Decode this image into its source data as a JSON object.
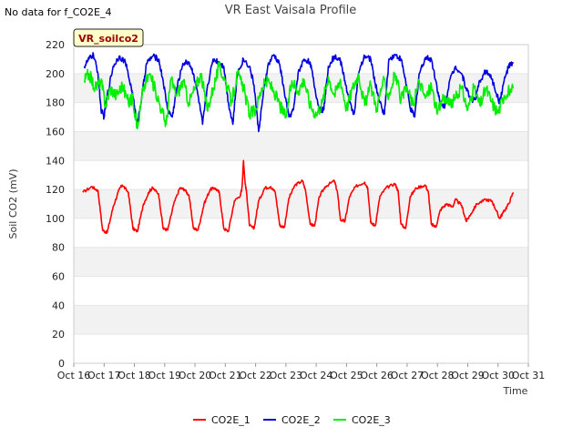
{
  "header": {
    "no_data_note": "No data for f_CO2E_4"
  },
  "chart_data": {
    "type": "line",
    "title": "VR East Vaisala Profile",
    "site_badge": "VR_soilco2",
    "xlabel": "Time",
    "ylabel": "Soil CO2 (mV)",
    "xlim": [
      0,
      15
    ],
    "ylim": [
      0,
      220
    ],
    "yticks": [
      0,
      20,
      40,
      60,
      80,
      100,
      120,
      140,
      160,
      180,
      200,
      220
    ],
    "xtick_labels": [
      "Oct 16",
      "Oct 17",
      "Oct 18",
      "Oct 19",
      "Oct 20",
      "Oct 21",
      "Oct 22",
      "Oct 23",
      "Oct 24",
      "Oct 25",
      "Oct 26",
      "Oct 27",
      "Oct 28",
      "Oct 29",
      "Oct 30",
      "Oct 31"
    ],
    "grid": "horizontal bands",
    "series": [
      {
        "name": "CO2E_1",
        "color": "#ff0000",
        "x": [
          0.3,
          0.6,
          0.8,
          0.95,
          1.1,
          1.3,
          1.5,
          1.6,
          1.8,
          1.95,
          2.1,
          2.3,
          2.5,
          2.6,
          2.8,
          2.95,
          3.1,
          3.3,
          3.5,
          3.65,
          3.8,
          3.95,
          4.1,
          4.3,
          4.5,
          4.65,
          4.8,
          4.95,
          5.1,
          5.3,
          5.5,
          5.55,
          5.6,
          5.65,
          5.7,
          5.8,
          5.95,
          6.1,
          6.3,
          6.5,
          6.65,
          6.8,
          6.95,
          7.1,
          7.3,
          7.55,
          7.65,
          7.8,
          7.95,
          8.1,
          8.3,
          8.6,
          8.7,
          8.8,
          8.95,
          9.1,
          9.3,
          9.6,
          9.7,
          9.8,
          9.95,
          10.1,
          10.3,
          10.6,
          10.7,
          10.8,
          10.95,
          11.1,
          11.3,
          11.6,
          11.7,
          11.8,
          11.95,
          12.1,
          12.3,
          12.5,
          12.6,
          12.8,
          12.95,
          13.1,
          13.3,
          13.6,
          13.8,
          13.95,
          14.05,
          14.2,
          14.35,
          14.5
        ],
        "values": [
          118,
          122,
          119,
          92,
          90,
          108,
          120,
          123,
          118,
          93,
          91,
          110,
          119,
          121,
          117,
          93,
          92,
          110,
          121,
          120,
          116,
          93,
          92,
          110,
          120,
          121,
          118,
          93,
          91,
          112,
          116,
          121,
          140,
          125,
          118,
          95,
          93,
          112,
          121,
          122,
          118,
          95,
          94,
          114,
          123,
          126,
          119,
          96,
          95,
          115,
          122,
          126,
          118,
          99,
          98,
          115,
          122,
          125,
          121,
          97,
          95,
          115,
          121,
          124,
          119,
          96,
          93,
          115,
          121,
          123,
          118,
          96,
          94,
          106,
          110,
          108,
          113,
          109,
          98,
          103,
          110,
          113,
          112,
          105,
          100,
          105,
          110,
          118
        ]
      },
      {
        "name": "CO2E_2",
        "color": "#0000dd",
        "x": [
          0.35,
          0.5,
          0.65,
          0.8,
          0.9,
          1.0,
          1.1,
          1.3,
          1.5,
          1.7,
          1.9,
          2.0,
          2.1,
          2.25,
          2.4,
          2.6,
          2.8,
          2.95,
          3.1,
          3.25,
          3.4,
          3.6,
          3.8,
          3.95,
          4.1,
          4.25,
          4.4,
          4.6,
          4.8,
          4.95,
          5.1,
          5.25,
          5.4,
          5.6,
          5.8,
          5.95,
          6.1,
          6.25,
          6.4,
          6.6,
          6.8,
          6.95,
          7.1,
          7.25,
          7.4,
          7.6,
          7.8,
          7.95,
          8.1,
          8.25,
          8.4,
          8.6,
          8.8,
          8.95,
          9.1,
          9.25,
          9.4,
          9.6,
          9.8,
          9.95,
          10.1,
          10.25,
          10.4,
          10.6,
          10.8,
          10.95,
          11.1,
          11.25,
          11.4,
          11.6,
          11.8,
          11.95,
          12.1,
          12.25,
          12.4,
          12.6,
          12.8,
          12.95,
          13.1,
          13.25,
          13.4,
          13.6,
          13.8,
          13.95,
          14.05,
          14.2,
          14.35,
          14.5
        ],
        "values": [
          205,
          210,
          213,
          200,
          175,
          170,
          185,
          205,
          212,
          208,
          190,
          178,
          165,
          185,
          207,
          212,
          210,
          195,
          175,
          170,
          190,
          207,
          208,
          200,
          185,
          165,
          190,
          210,
          208,
          205,
          180,
          165,
          200,
          210,
          205,
          192,
          160,
          185,
          205,
          213,
          206,
          187,
          170,
          175,
          200,
          210,
          208,
          190,
          175,
          175,
          205,
          212,
          209,
          195,
          180,
          172,
          200,
          212,
          210,
          193,
          180,
          172,
          210,
          213,
          210,
          195,
          176,
          170,
          200,
          211,
          210,
          195,
          178,
          178,
          195,
          205,
          200,
          190,
          182,
          182,
          195,
          202,
          196,
          186,
          180,
          195,
          205,
          207
        ]
      },
      {
        "name": "CO2E_3",
        "color": "#00ee00",
        "x": [
          0.35,
          0.5,
          0.7,
          0.9,
          1.05,
          1.2,
          1.4,
          1.6,
          1.8,
          1.95,
          2.1,
          2.3,
          2.5,
          2.7,
          2.9,
          3.05,
          3.2,
          3.4,
          3.6,
          3.8,
          4.0,
          4.2,
          4.4,
          4.6,
          4.8,
          5.0,
          5.2,
          5.4,
          5.6,
          5.8,
          6.0,
          6.2,
          6.4,
          6.6,
          6.8,
          7.0,
          7.2,
          7.4,
          7.6,
          7.8,
          8.0,
          8.2,
          8.4,
          8.6,
          8.8,
          9.0,
          9.2,
          9.4,
          9.6,
          9.8,
          10.0,
          10.2,
          10.4,
          10.6,
          10.8,
          11.0,
          11.2,
          11.4,
          11.6,
          11.8,
          12.0,
          12.2,
          12.4,
          12.6,
          12.8,
          13.0,
          13.2,
          13.4,
          13.6,
          13.8,
          14.0,
          14.2,
          14.5
        ],
        "values": [
          195,
          200,
          190,
          195,
          178,
          190,
          185,
          192,
          180,
          183,
          162,
          190,
          200,
          188,
          175,
          165,
          196,
          185,
          195,
          180,
          190,
          200,
          175,
          190,
          205,
          195,
          180,
          200,
          190,
          172,
          175,
          190,
          195,
          188,
          178,
          170,
          195,
          188,
          196,
          178,
          172,
          180,
          198,
          185,
          196,
          176,
          190,
          200,
          178,
          192,
          176,
          195,
          185,
          200,
          182,
          190,
          178,
          195,
          183,
          192,
          172,
          185,
          178,
          183,
          190,
          175,
          190,
          178,
          190,
          180,
          173,
          185,
          190
        ]
      }
    ]
  }
}
